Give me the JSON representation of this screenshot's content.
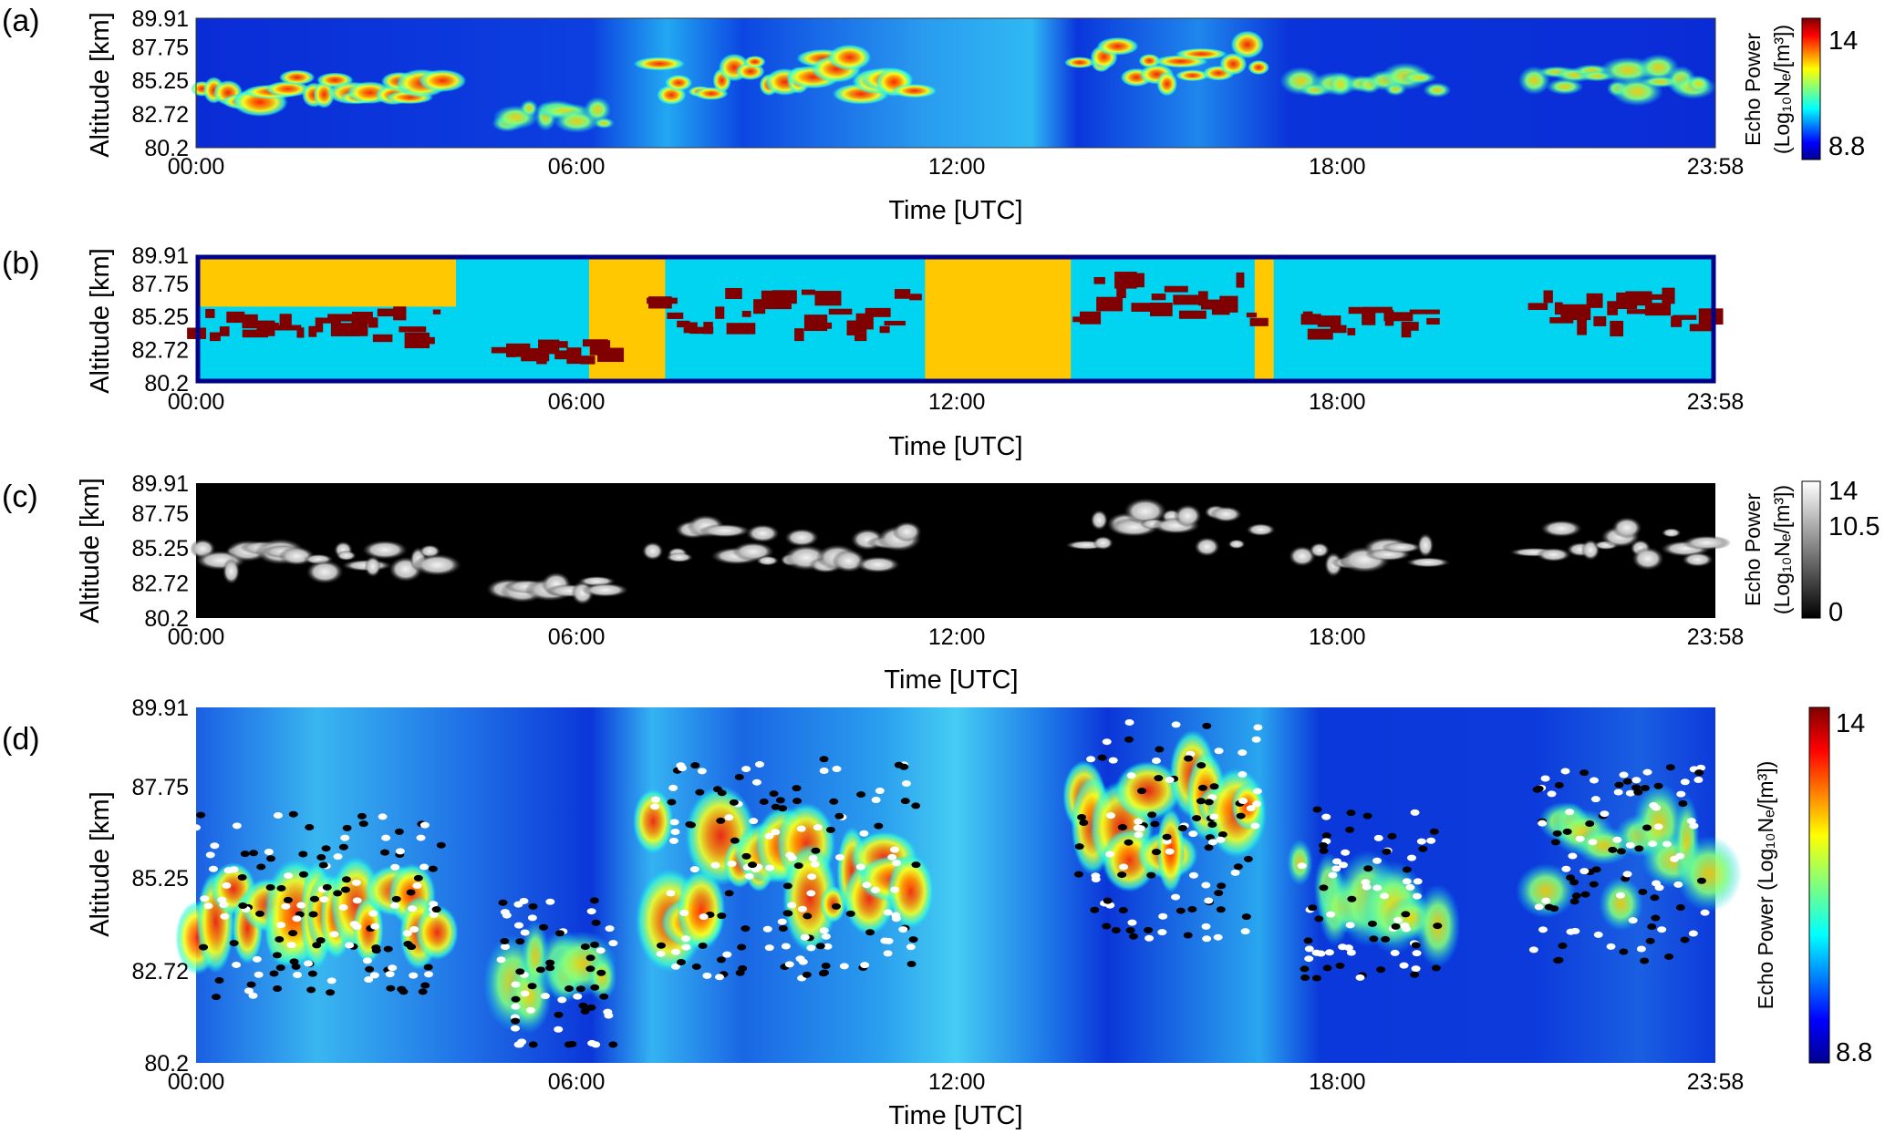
{
  "chart_data": [
    {
      "panel": "(a)",
      "type": "heatmap",
      "xlabel": "Time [UTC]",
      "ylabel": "Altitude [km]",
      "xticks": [
        "00:00",
        "06:00",
        "12:00",
        "18:00",
        "23:58"
      ],
      "xtick_hours": [
        0,
        6,
        12,
        18,
        23.967
      ],
      "xlim": [
        0,
        23.967
      ],
      "yticks": [
        "80.2",
        "82.72",
        "85.25",
        "87.75",
        "89.91"
      ],
      "ytick_values": [
        80.2,
        82.72,
        85.25,
        87.75,
        89.91
      ],
      "ylim": [
        80.2,
        89.91
      ],
      "colormap": "jet",
      "colorbar": {
        "title_line1": "Echo Power",
        "title_line2": "(Log₁₀Nₑ/[m³])",
        "ticks": [
          "14",
          "8.8"
        ],
        "range": [
          8.8,
          14
        ]
      },
      "echo_layers": [
        {
          "start": 0.0,
          "end": 3.9,
          "altitude": 84.5,
          "thickness": 2.0,
          "intensity": 0.85
        },
        {
          "start": 4.8,
          "end": 6.6,
          "altitude": 82.6,
          "thickness": 1.2,
          "intensity": 0.55
        },
        {
          "start": 7.2,
          "end": 11.4,
          "altitude": 85.5,
          "thickness": 3.0,
          "intensity": 0.9
        },
        {
          "start": 13.9,
          "end": 16.8,
          "altitude": 86.5,
          "thickness": 3.2,
          "intensity": 0.85
        },
        {
          "start": 17.4,
          "end": 19.6,
          "altitude": 84.8,
          "thickness": 1.8,
          "intensity": 0.6
        },
        {
          "start": 21.1,
          "end": 23.9,
          "altitude": 85.6,
          "thickness": 2.4,
          "intensity": 0.65
        }
      ]
    },
    {
      "panel": "(b)",
      "type": "heatmap",
      "xlabel": "Time [UTC]",
      "ylabel": "Altitude [km]",
      "xticks": [
        "00:00",
        "06:00",
        "12:00",
        "18:00",
        "23:58"
      ],
      "xtick_hours": [
        0,
        6,
        12,
        18,
        23.967
      ],
      "xlim": [
        0,
        23.967
      ],
      "yticks": [
        "80.2",
        "82.72",
        "85.25",
        "87.75",
        "89.91"
      ],
      "ytick_values": [
        80.2,
        82.72,
        85.25,
        87.75,
        89.91
      ],
      "ylim": [
        80.2,
        89.91
      ],
      "class_colors": {
        "background": "#00d4f0",
        "echo": "#800000",
        "excluded": "#ffc800",
        "frame": "#00008b"
      },
      "excluded_intervals": [
        {
          "start": 0.0,
          "end": 4.1,
          "altitude_min": 86.0
        },
        {
          "start": 6.2,
          "end": 7.4
        },
        {
          "start": 11.5,
          "end": 13.8
        },
        {
          "start": 16.7,
          "end": 17.0
        }
      ]
    },
    {
      "panel": "(c)",
      "type": "heatmap",
      "xlabel": "Time [UTC]",
      "ylabel": "Altitude [km]",
      "xticks": [
        "00:00",
        "06:00",
        "12:00",
        "18:00",
        "23:58"
      ],
      "xtick_hours": [
        0,
        6,
        12,
        18,
        23.967
      ],
      "xlim": [
        0,
        23.967
      ],
      "yticks": [
        "80.2",
        "82.72",
        "85.25",
        "87.75",
        "89.91"
      ],
      "ytick_values": [
        80.2,
        82.72,
        85.25,
        87.75,
        89.91
      ],
      "ylim": [
        80.2,
        89.91
      ],
      "colormap": "gray",
      "colorbar": {
        "title_line1": "Echo Power",
        "title_line2": "(Log₁₀Nₑ/[m³])",
        "ticks": [
          "14",
          "10.5",
          "0"
        ],
        "range": [
          0,
          14
        ]
      }
    },
    {
      "panel": "(d)",
      "type": "heatmap",
      "xlabel": "Time [UTC]",
      "ylabel": "Altitude [km]",
      "xticks": [
        "00:00",
        "06:00",
        "12:00",
        "18:00",
        "23:58"
      ],
      "xtick_hours": [
        0,
        6,
        12,
        18,
        23.967
      ],
      "xlim": [
        0,
        23.967
      ],
      "yticks": [
        "80.2",
        "82.72",
        "85.25",
        "87.75",
        "89.91"
      ],
      "ytick_values": [
        80.2,
        82.72,
        85.25,
        87.75,
        89.91
      ],
      "ylim": [
        80.2,
        89.91
      ],
      "colormap": "jet",
      "overlay_markers": [
        "white",
        "black"
      ],
      "colorbar": {
        "title": "Echo Power (Log₁₀Nₑ/[m³])",
        "ticks": [
          "14",
          "8.8"
        ],
        "range": [
          8.8,
          14
        ]
      }
    }
  ]
}
